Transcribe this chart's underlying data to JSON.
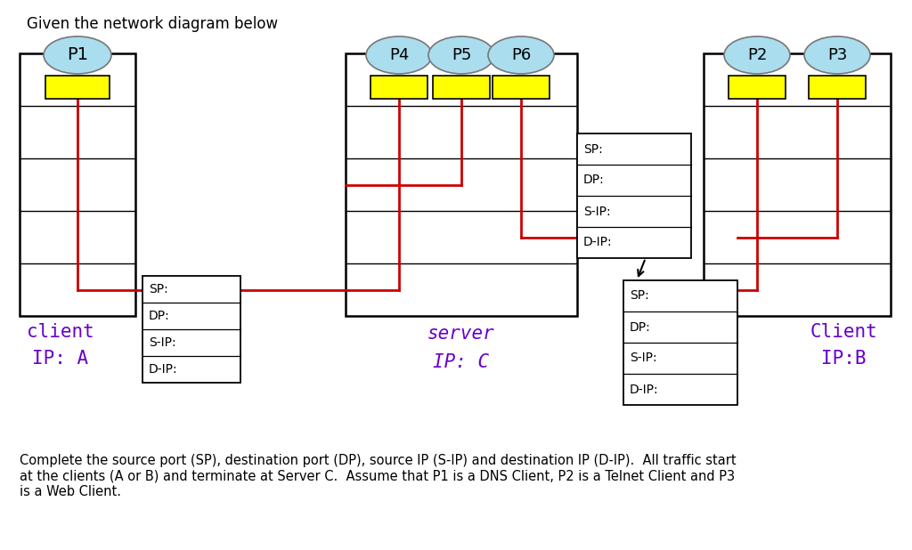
{
  "title": "Given the network diagram below",
  "bottom_text": "Complete the source port (SP), destination port (DP), source IP (S-IP) and destination IP (D-IP).  All traffic start\nat the clients (A or B) and terminate at Server C.  Assume that P1 is a DNS Client, P2 is a Telnet Client and P3\nis a Web Client.",
  "label_color": "#6600cc",
  "port_ellipse_color": "#aaddee",
  "port_ellipse_edge": "#888888",
  "port_box_color": "#ffff00",
  "red_line_color": "#cc0000",
  "background_color": "#ffffff",
  "fields": [
    "SP:",
    "DP:",
    "S-IP:",
    "D-IP:"
  ]
}
